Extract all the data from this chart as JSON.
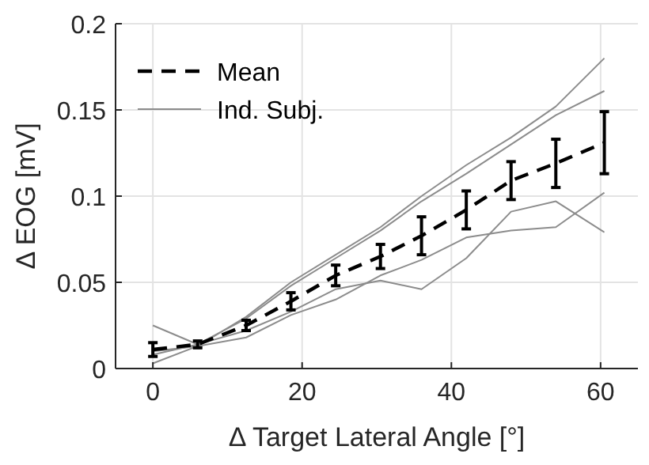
{
  "chart_data": {
    "type": "line",
    "xlabel": "Δ  Target Lateral Angle [°]",
    "ylabel": "Δ  EOG [mV]",
    "x": [
      0,
      6,
      12.5,
      18.5,
      24.5,
      30.5,
      36,
      42,
      48,
      54,
      60.5
    ],
    "xlim": [
      -5,
      65
    ],
    "xticks": [
      0,
      20,
      40,
      60
    ],
    "ylim": [
      0,
      0.2
    ],
    "yticks": [
      0,
      0.05,
      0.1,
      0.15,
      0.2
    ],
    "grid": true,
    "legend": "top left",
    "marker": "none",
    "series": [
      {
        "name": "Ind. Subj.",
        "color": "#8c8c8c",
        "line_style": "solid",
        "values": [
          0.003,
          0.013,
          0.03,
          0.05,
          0.066,
          0.082,
          0.1,
          0.118,
          0.134,
          0.152,
          0.18
        ]
      },
      {
        "color": "#8c8c8c",
        "line_style": "solid",
        "values": [
          0.008,
          0.014,
          0.029,
          0.048,
          0.064,
          0.08,
          0.097,
          0.113,
          0.13,
          0.147,
          0.161
        ]
      },
      {
        "color": "#8c8c8c",
        "line_style": "solid",
        "values": [
          0.025,
          0.014,
          0.022,
          0.033,
          0.046,
          0.051,
          0.046,
          0.064,
          0.091,
          0.097,
          0.079
        ]
      },
      {
        "color": "#8c8c8c",
        "line_style": "solid",
        "values": [
          0.01,
          0.013,
          0.018,
          0.031,
          0.04,
          0.054,
          0.063,
          0.076,
          0.08,
          0.082,
          0.102
        ]
      },
      {
        "name": "Mean",
        "color": "#000000",
        "line_style": "dashed",
        "values": [
          0.011,
          0.014,
          0.025,
          0.039,
          0.054,
          0.065,
          0.077,
          0.092,
          0.109,
          0.119,
          0.131
        ],
        "errors": [
          0.004,
          0.002,
          0.003,
          0.005,
          0.006,
          0.007,
          0.011,
          0.011,
          0.011,
          0.014,
          0.018
        ]
      }
    ]
  }
}
